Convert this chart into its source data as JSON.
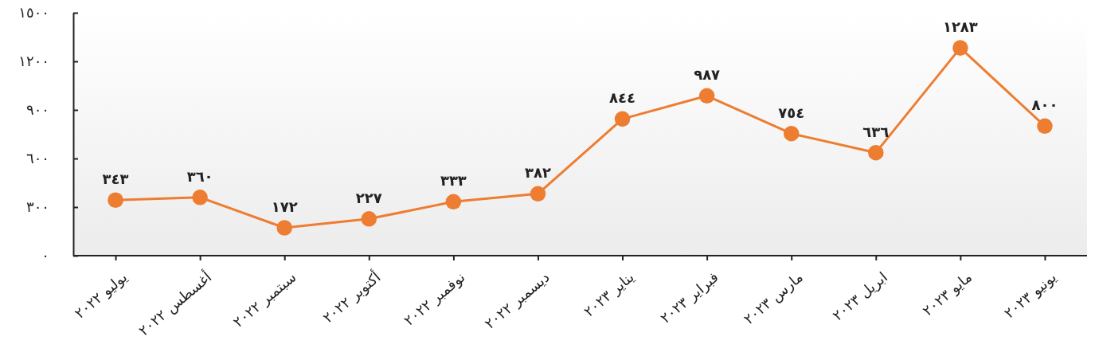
{
  "chart_data": {
    "type": "line",
    "categories": [
      "يوليو ٢٠٢٢",
      "أغسطس ٢٠٢٢",
      "سبتمبر ٢٠٢٢",
      "أكتوبر ٢٠٢٢",
      "نوفمبر ٢٠٢٢",
      "ديسمبر ٢٠٢٢",
      "يناير ٢٠٢٣",
      "فبراير ٢٠٢٣",
      "مارس ٢٠٢٣",
      "ابريل ٢٠٢٣",
      "مايو ٢٠٢٣",
      "يونيو ٢٠٢٣"
    ],
    "series": [
      {
        "color": "#ed7d31",
        "values": [
          343,
          360,
          172,
          227,
          333,
          382,
          844,
          987,
          754,
          636,
          1283,
          800
        ],
        "value_labels": [
          "٣٤٣",
          "٣٦٠",
          "١٧٢",
          "٢٢٧",
          "٣٣٣",
          "٣٨٢",
          "٨٤٤",
          "٩٨٧",
          "٧٥٤",
          "٦٣٦",
          "١٢٨٣",
          "٨٠٠"
        ]
      }
    ],
    "ylim": [
      0,
      1500
    ],
    "yticks": [
      {
        "value": 0,
        "label": "٠"
      },
      {
        "value": 300,
        "label": "٣٠٠"
      },
      {
        "value": 600,
        "label": "٦٠٠"
      },
      {
        "value": 900,
        "label": "٩٠٠"
      },
      {
        "value": 1200,
        "label": "١٢٠٠"
      },
      {
        "value": 1500,
        "label": "١٥٠٠"
      }
    ],
    "marker": "circle",
    "line_style": "solid",
    "grid": false
  }
}
